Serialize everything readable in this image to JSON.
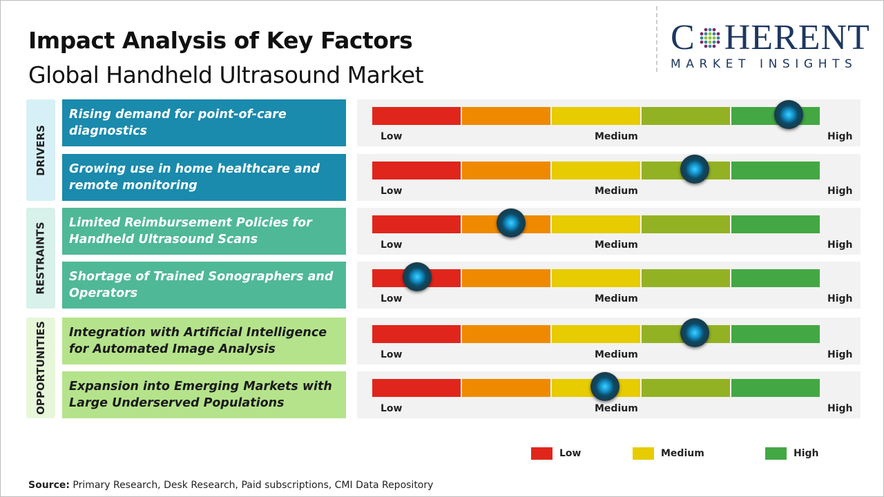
{
  "header": {
    "title": "Impact Analysis of Key Factors",
    "subtitle": "Global Handheld Ultrasound Market"
  },
  "logo": {
    "line1": "COHERENT",
    "line2": "MARKET INSIGHTS"
  },
  "colors": {
    "low": "#e0261c",
    "low_med": "#ef8a00",
    "medium": "#e6cc00",
    "med_high": "#93b223",
    "high": "#43a843",
    "drivers": "#1a8aad",
    "restraints": "#4fb897",
    "opportunities": "#b5e38b"
  },
  "scale_labels": {
    "low": "Low",
    "medium": "Medium",
    "high": "High"
  },
  "chart_data": {
    "type": "gauge",
    "scale": [
      "Low",
      "Medium",
      "High"
    ],
    "range": [
      0,
      1
    ],
    "categories": [
      {
        "name": "DRIVERS",
        "factors": [
          {
            "label": "Rising demand for point-of-care diagnostics",
            "impact": 0.93
          },
          {
            "label": "Growing use in home healthcare and remote monitoring",
            "impact": 0.72
          }
        ]
      },
      {
        "name": "RESTRAINTS",
        "factors": [
          {
            "label": "Limited Reimbursement Policies for Handheld Ultrasound Scans",
            "impact": 0.31
          },
          {
            "label": "Shortage of Trained Sonographers and Operators",
            "impact": 0.1
          }
        ]
      },
      {
        "name": "OPPORTUNITIES",
        "factors": [
          {
            "label": "Integration with Artificial Intelligence for Automated Image Analysis",
            "impact": 0.72
          },
          {
            "label": "Expansion into Emerging Markets with Large Underserved Populations",
            "impact": 0.52
          }
        ]
      }
    ]
  },
  "legend": [
    {
      "label": "Low",
      "color": "#e0261c"
    },
    {
      "label": "Medium",
      "color": "#e6cc00"
    },
    {
      "label": "High",
      "color": "#43a843"
    }
  ],
  "footer": {
    "source_label": "Source:",
    "source_text": " Primary Research, Desk Research, Paid subscriptions, CMI Data Repository"
  }
}
